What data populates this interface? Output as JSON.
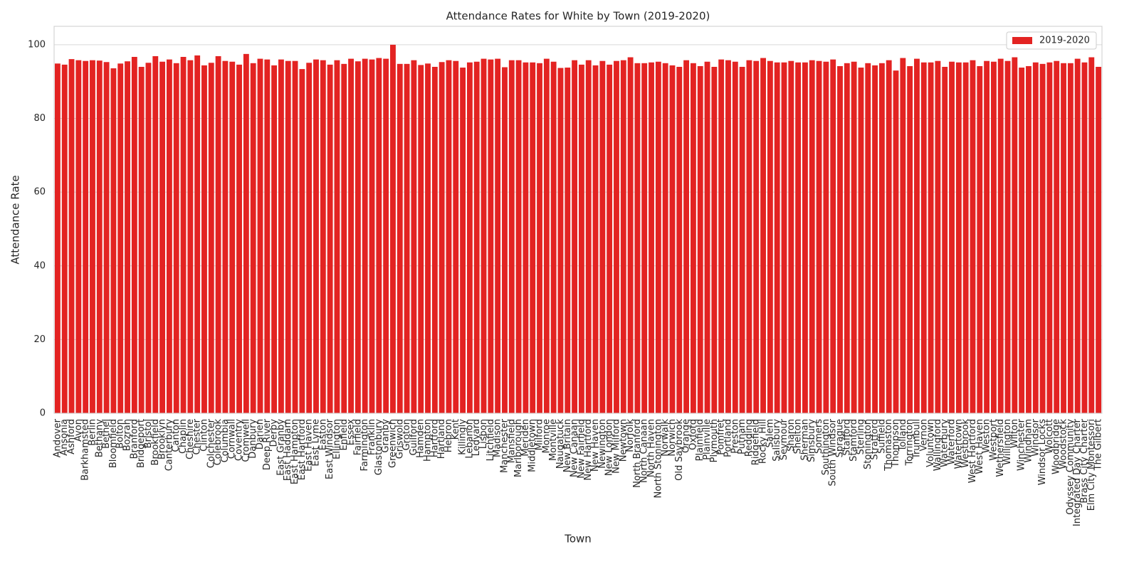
{
  "chart_data": {
    "type": "bar",
    "title": "Attendance Rates for White by Town (2019-2020)",
    "x_label": "Town",
    "y_label": "Attendance Rate",
    "categories": [
      "Andover",
      "Ansonia",
      "Ashford",
      "Avon",
      "Barkhamsted",
      "Berlin",
      "Bethany",
      "Bethel",
      "Bloomfield",
      "Bolton",
      "Bozrah",
      "Branford",
      "Bridgeport",
      "Bristol",
      "Brookfield",
      "Brooklyn",
      "Canterbury",
      "Canton",
      "Chaplin",
      "Cheshire",
      "Chester",
      "Clinton",
      "Colchester",
      "Colebrook",
      "Columbia",
      "Cornwall",
      "Coventry",
      "Cromwell",
      "Danbury",
      "Darien",
      "Deep River",
      "Derby",
      "East Granby",
      "East Haddam",
      "East Hampton",
      "East Hartford",
      "East Haven",
      "East Lyme",
      "Easton",
      "East Windsor",
      "Ellington",
      "Enfield",
      "Essex",
      "Fairfield",
      "Farmington",
      "Franklin",
      "Glastonbury",
      "Granby",
      "Greenwich",
      "Griswold",
      "Groton",
      "Guilford",
      "Hamden",
      "Hampton",
      "Hartford",
      "Hartland",
      "Hebron",
      "Kent",
      "Killingly",
      "Lebanon",
      "Ledyard",
      "Lisbon",
      "Litchfield",
      "Madison",
      "Manchester",
      "Mansfield",
      "Marlborough",
      "Meriden",
      "Middletown",
      "Milford",
      "Monroe",
      "Montville",
      "Naugatuck",
      "New Britain",
      "New Canaan",
      "New Fairfield",
      "New Hartford",
      "New Haven",
      "Newington",
      "New London",
      "New Milford",
      "Newtown",
      "Norfolk",
      "North Branford",
      "North Canaan",
      "North Haven",
      "North Stonington",
      "Norwalk",
      "Norwich",
      "Old Saybrook",
      "Orange",
      "Oxford",
      "Plainfield",
      "Plainville",
      "Plymouth",
      "Pomfret",
      "Portland",
      "Preston",
      "Putnam",
      "Redding",
      "Ridgefield",
      "Rocky Hill",
      "Salem",
      "Salisbury",
      "Seymour",
      "Sharon",
      "Shelton",
      "Sherman",
      "Simsbury",
      "Somers",
      "Southington",
      "South Windsor",
      "Sprague",
      "Stafford",
      "Stamford",
      "Sterling",
      "Stonington",
      "Stratford",
      "Suffield",
      "Thomaston",
      "Thompson",
      "Tolland",
      "Torrington",
      "Trumbull",
      "Vernon",
      "Voluntown",
      "Wallingford",
      "Waterbury",
      "Waterford",
      "Watertown",
      "Westbrook",
      "West Hartford",
      "West Haven",
      "Weston",
      "Westport",
      "Wethersfield",
      "Willington",
      "Wilton",
      "Winchester",
      "Windham",
      "Windsor",
      "Windsor Locks",
      "Wolcott",
      "Woodbridge",
      "Woodstock",
      "Odyssey Community",
      "Integrated Day Charter",
      "Brass City Charter",
      "Elm City Montessori",
      "The Gilbert"
    ],
    "series": [
      {
        "name": "2019-2020",
        "color": "#e32322",
        "values": [
          94.9,
          94.6,
          96.1,
          95.8,
          95.6,
          95.8,
          95.7,
          95.3,
          93.6,
          94.9,
          95.5,
          96.7,
          94.0,
          95.1,
          96.9,
          95.4,
          96.0,
          95.0,
          96.7,
          95.8,
          97.1,
          94.4,
          95.1,
          96.9,
          95.6,
          95.4,
          94.6,
          97.5,
          95.0,
          96.2,
          96.0,
          94.4,
          96.0,
          95.6,
          95.6,
          93.4,
          95.1,
          96.0,
          95.8,
          94.6,
          95.8,
          94.8,
          96.2,
          95.5,
          96.2,
          96.0,
          96.4,
          96.2,
          100,
          94.8,
          94.8,
          95.8,
          94.5,
          94.9,
          94.0,
          95.3,
          95.8,
          95.6,
          93.8,
          95.2,
          95.4,
          96.2,
          96.0,
          96.2,
          93.9,
          95.8,
          95.8,
          95.2,
          95.2,
          95.0,
          96.2,
          95.4,
          93.7,
          93.8,
          95.8,
          94.6,
          95.8,
          94.4,
          95.6,
          94.6,
          95.6,
          95.8,
          96.6,
          95.0,
          95.0,
          95.2,
          95.4,
          95.0,
          94.4,
          94.0,
          95.8,
          95.0,
          94.2,
          95.4,
          94.0,
          96.0,
          95.8,
          95.4,
          94.0,
          95.8,
          95.6,
          96.4,
          95.6,
          95.2,
          95.2,
          95.6,
          95.2,
          95.2,
          95.8,
          95.6,
          95.4,
          96.0,
          94.2,
          95.0,
          95.4,
          93.8,
          95.0,
          94.4,
          95.0,
          95.8,
          93.0,
          96.4,
          94.2,
          96.2,
          95.2,
          95.2,
          95.6,
          94.0,
          95.4,
          95.2,
          95.2,
          95.8,
          94.2,
          95.6,
          95.4,
          96.2,
          95.6,
          96.6,
          93.8,
          94.2,
          95.2,
          94.8,
          95.2,
          95.6,
          95.0,
          95.0,
          96.2,
          95.2,
          96.6,
          94.0
        ]
      }
    ],
    "ylim": [
      0,
      105
    ],
    "yticks": [
      0,
      20,
      40,
      60,
      80,
      100
    ],
    "grid": true,
    "legend": "upper right"
  }
}
